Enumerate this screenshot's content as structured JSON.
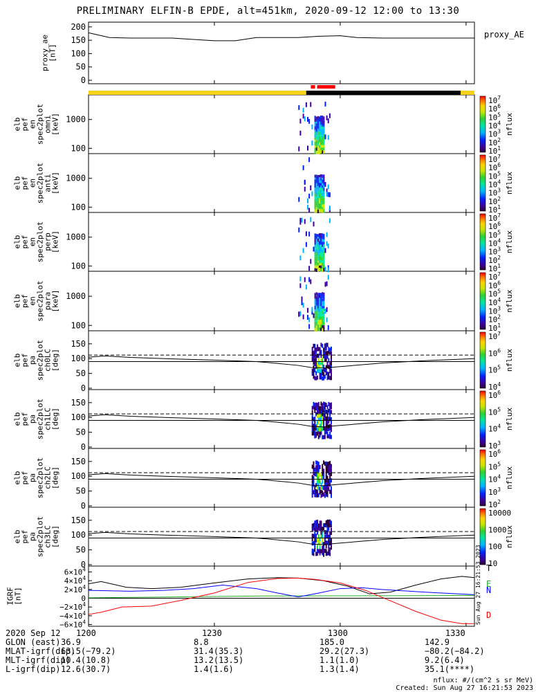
{
  "title": "PRELIMINARY ELFIN-B EPDE, alt=451km, 2020-09-12 12:00 to 13:30",
  "ae": {
    "ylabel": [
      "proxy_ae",
      "[nT]"
    ],
    "ticks": [
      "200",
      "150",
      "100",
      "50",
      "0"
    ],
    "tick_values": [
      200,
      150,
      100,
      50,
      0
    ],
    "ylim": [
      0,
      210
    ],
    "legend": "proxy_AE"
  },
  "spec_panels": [
    {
      "label": [
        "elb",
        "pef",
        "en",
        "spec2plot",
        "omni",
        "[keV]"
      ],
      "ticks": [
        "1000",
        "100"
      ]
    },
    {
      "label": [
        "elb",
        "pef",
        "en",
        "spec2plot",
        "anti",
        "[keV]"
      ],
      "ticks": [
        "1000",
        "100"
      ]
    },
    {
      "label": [
        "elb",
        "pef",
        "en",
        "spec2plot",
        "perp",
        "[keV]"
      ],
      "ticks": [
        "1000",
        "100"
      ]
    },
    {
      "label": [
        "elb",
        "pef",
        "en",
        "spec2plot",
        "para",
        "[keV]"
      ],
      "ticks": [
        "1000",
        "100"
      ]
    }
  ],
  "pa_panels": [
    {
      "label": [
        "elb",
        "pef",
        "pa",
        "spec2plot",
        "ch0LC",
        "[deg]"
      ],
      "ticks": [
        "150",
        "100",
        "50",
        "0"
      ]
    },
    {
      "label": [
        "elb",
        "pef",
        "pa",
        "spec2plot",
        "ch1LC",
        "[deg]"
      ],
      "ticks": [
        "150",
        "100",
        "50",
        "0"
      ]
    },
    {
      "label": [
        "elb",
        "pef",
        "pa",
        "spec2plot",
        "ch2LC",
        "[deg]"
      ],
      "ticks": [
        "150",
        "100",
        "50",
        "0"
      ]
    },
    {
      "label": [
        "elb",
        "pef",
        "pa",
        "spec2plot",
        "ch3LC",
        "[deg]"
      ],
      "ticks": [
        "150",
        "100",
        "50",
        "0"
      ]
    }
  ],
  "colorbars": [
    {
      "title": "nflux",
      "labels": [
        "10^7",
        "10^6",
        "10^5",
        "10^4",
        "10^3",
        "10^2",
        "10^1"
      ]
    },
    {
      "title": "nflux",
      "labels": [
        "10^7",
        "10^6",
        "10^5",
        "10^4",
        "10^3",
        "10^2",
        "10^1"
      ]
    },
    {
      "title": "nflux",
      "labels": [
        "10^7",
        "10^6",
        "10^5",
        "10^4",
        "10^3",
        "10^2",
        "10^1"
      ]
    },
    {
      "title": "nflux",
      "labels": [
        "10^7",
        "10^6",
        "10^5",
        "10^4",
        "10^3",
        "10^2",
        "10^1"
      ]
    },
    {
      "title": "nflux",
      "labels": [
        "10^7",
        "10^6",
        "10^5",
        "10^4"
      ]
    },
    {
      "title": "nflux",
      "labels": [
        "10^6",
        "10^5",
        "10^4",
        "10^3"
      ]
    },
    {
      "title": "nflux",
      "labels": [
        "10^6",
        "10^5",
        "10^4",
        "10^3",
        "10^2"
      ]
    },
    {
      "title": "nflux",
      "labels": [
        "10000",
        "1000",
        "100",
        "10"
      ]
    }
  ],
  "igrf": {
    "ylabel": [
      "IGRF",
      "[nT]"
    ],
    "ticks": [
      "6×10^4",
      "4×10^4",
      "2×10^4",
      "0",
      "−2×10^4",
      "−4×10^4",
      "−6×10^4"
    ],
    "legend": [
      "T",
      "E",
      "N",
      "D"
    ],
    "legend_colors": [
      "#000000",
      "#22aa22",
      "#0000ff",
      "#ff0000"
    ],
    "side_stamp": "Sun Aug 27 16:21:53 2023"
  },
  "colors": {
    "state_day": "#f7d117",
    "state_night": "#000000",
    "science_zone": "#ff0000"
  },
  "chart_data": {
    "type": "heatmap",
    "x_tick_labels": [
      "1200",
      "1230",
      "1300",
      "1330"
    ],
    "x_tick_minutes": [
      0,
      30,
      60,
      90
    ],
    "xlim_minutes": [
      0,
      92
    ],
    "proxy_ae": {
      "x": [
        0,
        5,
        10,
        20,
        30,
        35,
        40,
        50,
        55,
        60,
        64,
        70,
        80,
        92
      ],
      "y": [
        178,
        160,
        158,
        158,
        148,
        148,
        160,
        160,
        165,
        167,
        160,
        158,
        158,
        158
      ]
    },
    "science_zone_minutes": [
      [
        53.0,
        54.0
      ],
      [
        54.5,
        58.8
      ]
    ],
    "night_minutes": [
      51.9,
      88.7
    ],
    "loss_cone_deg": {
      "x": [
        0,
        4,
        10,
        20,
        30,
        40,
        45,
        50,
        53,
        56,
        60,
        70,
        80,
        92
      ],
      "y": [
        105,
        109,
        104,
        99,
        95,
        90,
        84,
        77,
        70,
        68,
        73,
        85,
        93,
        100
      ]
    },
    "anti_loss_cone_deg": {
      "x": [
        0,
        92
      ],
      "y": [
        90,
        90
      ]
    },
    "dashed_ref_deg": {
      "x": [
        0,
        92
      ],
      "y": [
        112,
        112
      ]
    },
    "igrf_T": {
      "x": [
        0,
        3,
        9,
        15,
        22,
        30,
        38,
        45,
        50,
        56,
        62,
        67,
        72,
        78,
        84,
        89,
        92
      ],
      "y": [
        33000,
        38000,
        25000,
        22000,
        25000,
        35000,
        44000,
        47000,
        46000,
        40000,
        27000,
        10000,
        14000,
        30000,
        44000,
        50000,
        47000
      ]
    },
    "igrf_N": {
      "x": [
        0,
        5,
        10,
        18,
        25,
        32,
        40,
        45,
        50,
        55,
        60,
        65,
        70,
        80,
        92
      ],
      "y": [
        18000,
        17000,
        16000,
        18000,
        22000,
        30000,
        22000,
        12000,
        3000,
        12000,
        22000,
        24000,
        20000,
        14000,
        8000
      ]
    },
    "igrf_E": {
      "x": [
        0,
        20,
        40,
        60,
        80,
        92
      ],
      "y": [
        1000,
        3000,
        5000,
        5500,
        6000,
        6500
      ]
    },
    "igrf_D": {
      "x": [
        0,
        3,
        8,
        15,
        22,
        30,
        38,
        45,
        50,
        54,
        60,
        66,
        72,
        78,
        84,
        89,
        92
      ],
      "y": [
        -37000,
        -32000,
        -20000,
        -18000,
        -5000,
        12000,
        36000,
        45000,
        46000,
        43000,
        35000,
        18000,
        -6000,
        -30000,
        -50000,
        -58000,
        -58000
      ]
    }
  },
  "footer": {
    "date": "2020 Sep 12",
    "rows": [
      "GLON (east)",
      "MLAT-igrf(dip)",
      "MLT-igrf(dip)",
      "L-igrf(dip)"
    ],
    "columns": [
      {
        "tick": "1200",
        "values": [
          "36.9",
          "63.5(−79.2)",
          "10.4(10.8)",
          "12.6(30.7)"
        ]
      },
      {
        "tick": "1230",
        "values": [
          "8.8",
          "31.4(35.3)",
          "13.2(13.5)",
          "1.4(1.6)"
        ]
      },
      {
        "tick": "1300",
        "values": [
          "185.0",
          "29.2(27.3)",
          "1.1(1.0)",
          "1.3(1.4)"
        ]
      },
      {
        "tick": "1330",
        "values": [
          "142.9",
          "−80.2(−84.2)",
          "9.2(6.4)",
          "35.1(****)"
        ]
      }
    ]
  },
  "credit": {
    "units": "nflux: #/(cm^2 s sr MeV)",
    "created": "Created: Sun Aug 27 16:21:53 2023"
  }
}
